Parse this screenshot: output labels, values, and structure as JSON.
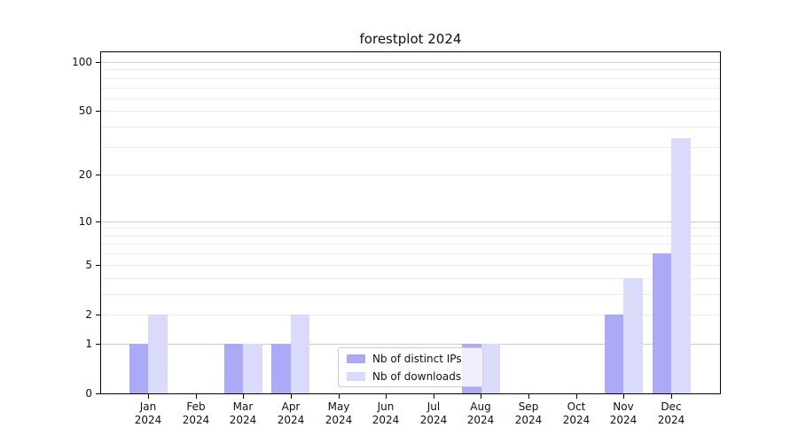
{
  "title": "forestplot 2024",
  "colors": {
    "bar_distinct_ips": "#aaaaf7",
    "bar_downloads": "#dadafa",
    "grid_major": "#cdcdcd",
    "grid_minor": "#ededed",
    "axis": "#000000",
    "legend_border": "#cccccc"
  },
  "chart_data": {
    "type": "bar",
    "title": "forestplot 2024",
    "categories": [
      "Jan",
      "Feb",
      "Mar",
      "Apr",
      "May",
      "Jun",
      "Jul",
      "Aug",
      "Sep",
      "Oct",
      "Nov",
      "Dec"
    ],
    "category_year": "2024",
    "series": [
      {
        "name": "Nb of distinct IPs",
        "slug": "distinct-ips",
        "color": "#aaaaf7",
        "values": [
          1,
          0,
          1,
          1,
          0,
          0,
          0,
          1,
          0,
          0,
          2,
          6
        ]
      },
      {
        "name": "Nb of downloads",
        "slug": "downloads",
        "color": "#dadafa",
        "values": [
          2,
          0,
          1,
          2,
          0,
          0,
          0,
          1,
          0,
          0,
          4,
          34
        ]
      }
    ],
    "yscale": "log1p",
    "ylim": [
      0,
      117
    ],
    "ytick_labels": [
      "0",
      "1",
      "2",
      "5",
      "10",
      "20",
      "50",
      "100"
    ],
    "ytick_values": [
      0,
      1,
      2,
      5,
      10,
      20,
      50,
      100
    ],
    "grid_major_values": [
      1,
      10,
      100
    ],
    "grid_minor_values": [
      2,
      3,
      4,
      5,
      6,
      7,
      8,
      9,
      20,
      30,
      40,
      50,
      60,
      70,
      80,
      90
    ],
    "grid": "horizontal",
    "legend_position": "lower-center-inside"
  }
}
